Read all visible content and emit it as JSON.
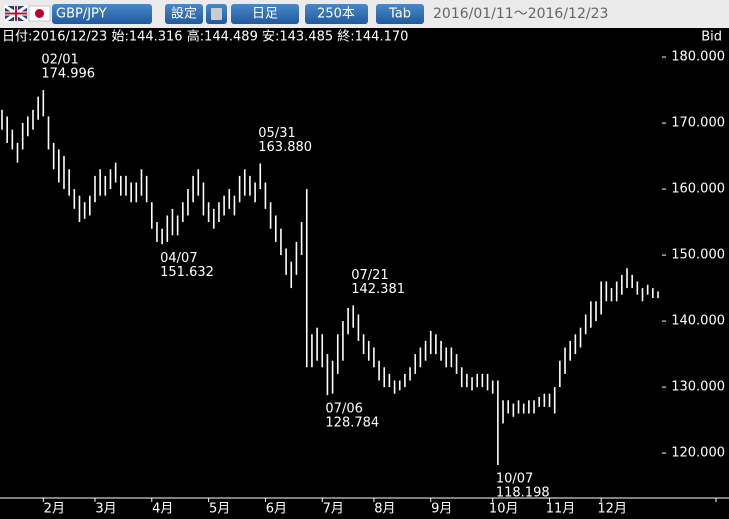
{
  "toolbar": {
    "pair": "GBP/JPY",
    "buttons": [
      "設定",
      "日足",
      "250本",
      "Tab"
    ],
    "range": "2016/01/11～2016/12/23"
  },
  "chart_data": {
    "type": "hl-bar",
    "info": "日付:2016/12/23 始:144.316 高:144.489 安:143.485 終:144.170",
    "y_label": "Bid",
    "color": "#ffffff",
    "categories": [
      null,
      null,
      null,
      null,
      null,
      null,
      null,
      null,
      "2月",
      null,
      null,
      null,
      null,
      null,
      null,
      null,
      null,
      null,
      "3月",
      null,
      null,
      null,
      null,
      null,
      null,
      null,
      null,
      null,
      null,
      "4月",
      null,
      null,
      null,
      null,
      null,
      null,
      null,
      null,
      null,
      null,
      "5月",
      null,
      null,
      null,
      null,
      null,
      null,
      null,
      null,
      null,
      null,
      "6月",
      null,
      null,
      null,
      null,
      null,
      null,
      null,
      null,
      null,
      null,
      "7月",
      null,
      null,
      null,
      null,
      null,
      null,
      null,
      null,
      null,
      "8月",
      null,
      null,
      null,
      null,
      null,
      null,
      null,
      null,
      null,
      null,
      "9月",
      null,
      null,
      null,
      null,
      null,
      null,
      null,
      null,
      null,
      null,
      null,
      "10月",
      null,
      null,
      null,
      null,
      null,
      null,
      null,
      null,
      null,
      null,
      "11月",
      null,
      null,
      null,
      null,
      null,
      null,
      null,
      null,
      null,
      "12月",
      null,
      null,
      null,
      null,
      null,
      null,
      null,
      null,
      null,
      null,
      null
    ],
    "high": [
      172,
      171,
      169,
      167,
      170,
      171,
      172,
      174,
      174.996,
      171,
      167,
      166,
      165,
      163,
      160,
      159,
      158,
      159,
      162,
      163,
      162,
      163,
      164,
      162,
      162,
      161,
      161,
      163,
      162,
      158,
      155,
      154,
      156,
      157,
      156,
      158,
      160,
      162,
      163,
      161,
      158,
      157,
      158,
      159,
      160,
      159,
      162,
      163,
      162,
      161,
      163.88,
      161,
      158,
      156,
      154,
      151,
      149,
      152,
      155,
      160,
      138,
      139,
      138,
      135,
      134,
      138,
      140,
      142,
      142.381,
      141,
      138,
      137,
      136,
      134,
      133,
      132,
      131,
      131,
      132,
      133,
      135,
      136,
      137,
      138.5,
      138,
      137,
      136,
      136,
      135,
      133,
      132,
      131.5,
      132,
      132,
      132,
      131,
      131,
      128,
      128,
      127.5,
      128,
      127.5,
      128,
      128,
      128.5,
      129,
      129,
      130,
      134,
      136,
      137,
      138,
      139,
      141,
      143,
      143,
      146,
      146,
      145,
      146,
      147,
      148,
      147,
      146,
      145,
      145.5,
      145,
      144.489
    ],
    "low": [
      169,
      167,
      166,
      164,
      166,
      168,
      169,
      170.5,
      171,
      166,
      163,
      161,
      160,
      159,
      157,
      155,
      155.5,
      156,
      158,
      159,
      159,
      160,
      161,
      159,
      159,
      158,
      158,
      159,
      158,
      154,
      152,
      151.632,
      152,
      153,
      153,
      155,
      156,
      158,
      159,
      156,
      155,
      154,
      155,
      156,
      157,
      156,
      158,
      159,
      159,
      158,
      160,
      157,
      154,
      152,
      150,
      147,
      145,
      147,
      150,
      133,
      133,
      134,
      133,
      128.784,
      129,
      132,
      134,
      138,
      139,
      137,
      135,
      134,
      133,
      131,
      130,
      130,
      129,
      129.5,
      130,
      131,
      132,
      133,
      134,
      135,
      135,
      134,
      133,
      133,
      132,
      130,
      130,
      129.5,
      130,
      130,
      129.5,
      129,
      118.198,
      124.5,
      126,
      125.5,
      126,
      126,
      126,
      126,
      127,
      127,
      127,
      126,
      130,
      132,
      134,
      135,
      136,
      138,
      139,
      140,
      141,
      143,
      143,
      143,
      144,
      145,
      145,
      144,
      143,
      144,
      143.5,
      143.485
    ],
    "ylim": [
      113.2,
      184.4
    ],
    "yticks": [
      {
        "value": 120,
        "label": "120.000"
      },
      {
        "value": 130,
        "label": "130.000"
      },
      {
        "value": 140,
        "label": "140.000"
      },
      {
        "value": 150,
        "label": "150.000"
      },
      {
        "value": 160,
        "label": "160.000"
      },
      {
        "value": 170,
        "label": "170.000"
      },
      {
        "value": 180,
        "label": "180.000"
      }
    ],
    "annotations": [
      {
        "date": "02/01",
        "value": 174.996
      },
      {
        "date": "04/07",
        "value": 151.632
      },
      {
        "date": "05/31",
        "value": 163.88,
        "value_label": "163.880"
      },
      {
        "date": "07/06",
        "value": 128.784
      },
      {
        "date": "07/21",
        "value": 142.381
      },
      {
        "date": "10/07",
        "value": 118.198
      }
    ]
  }
}
